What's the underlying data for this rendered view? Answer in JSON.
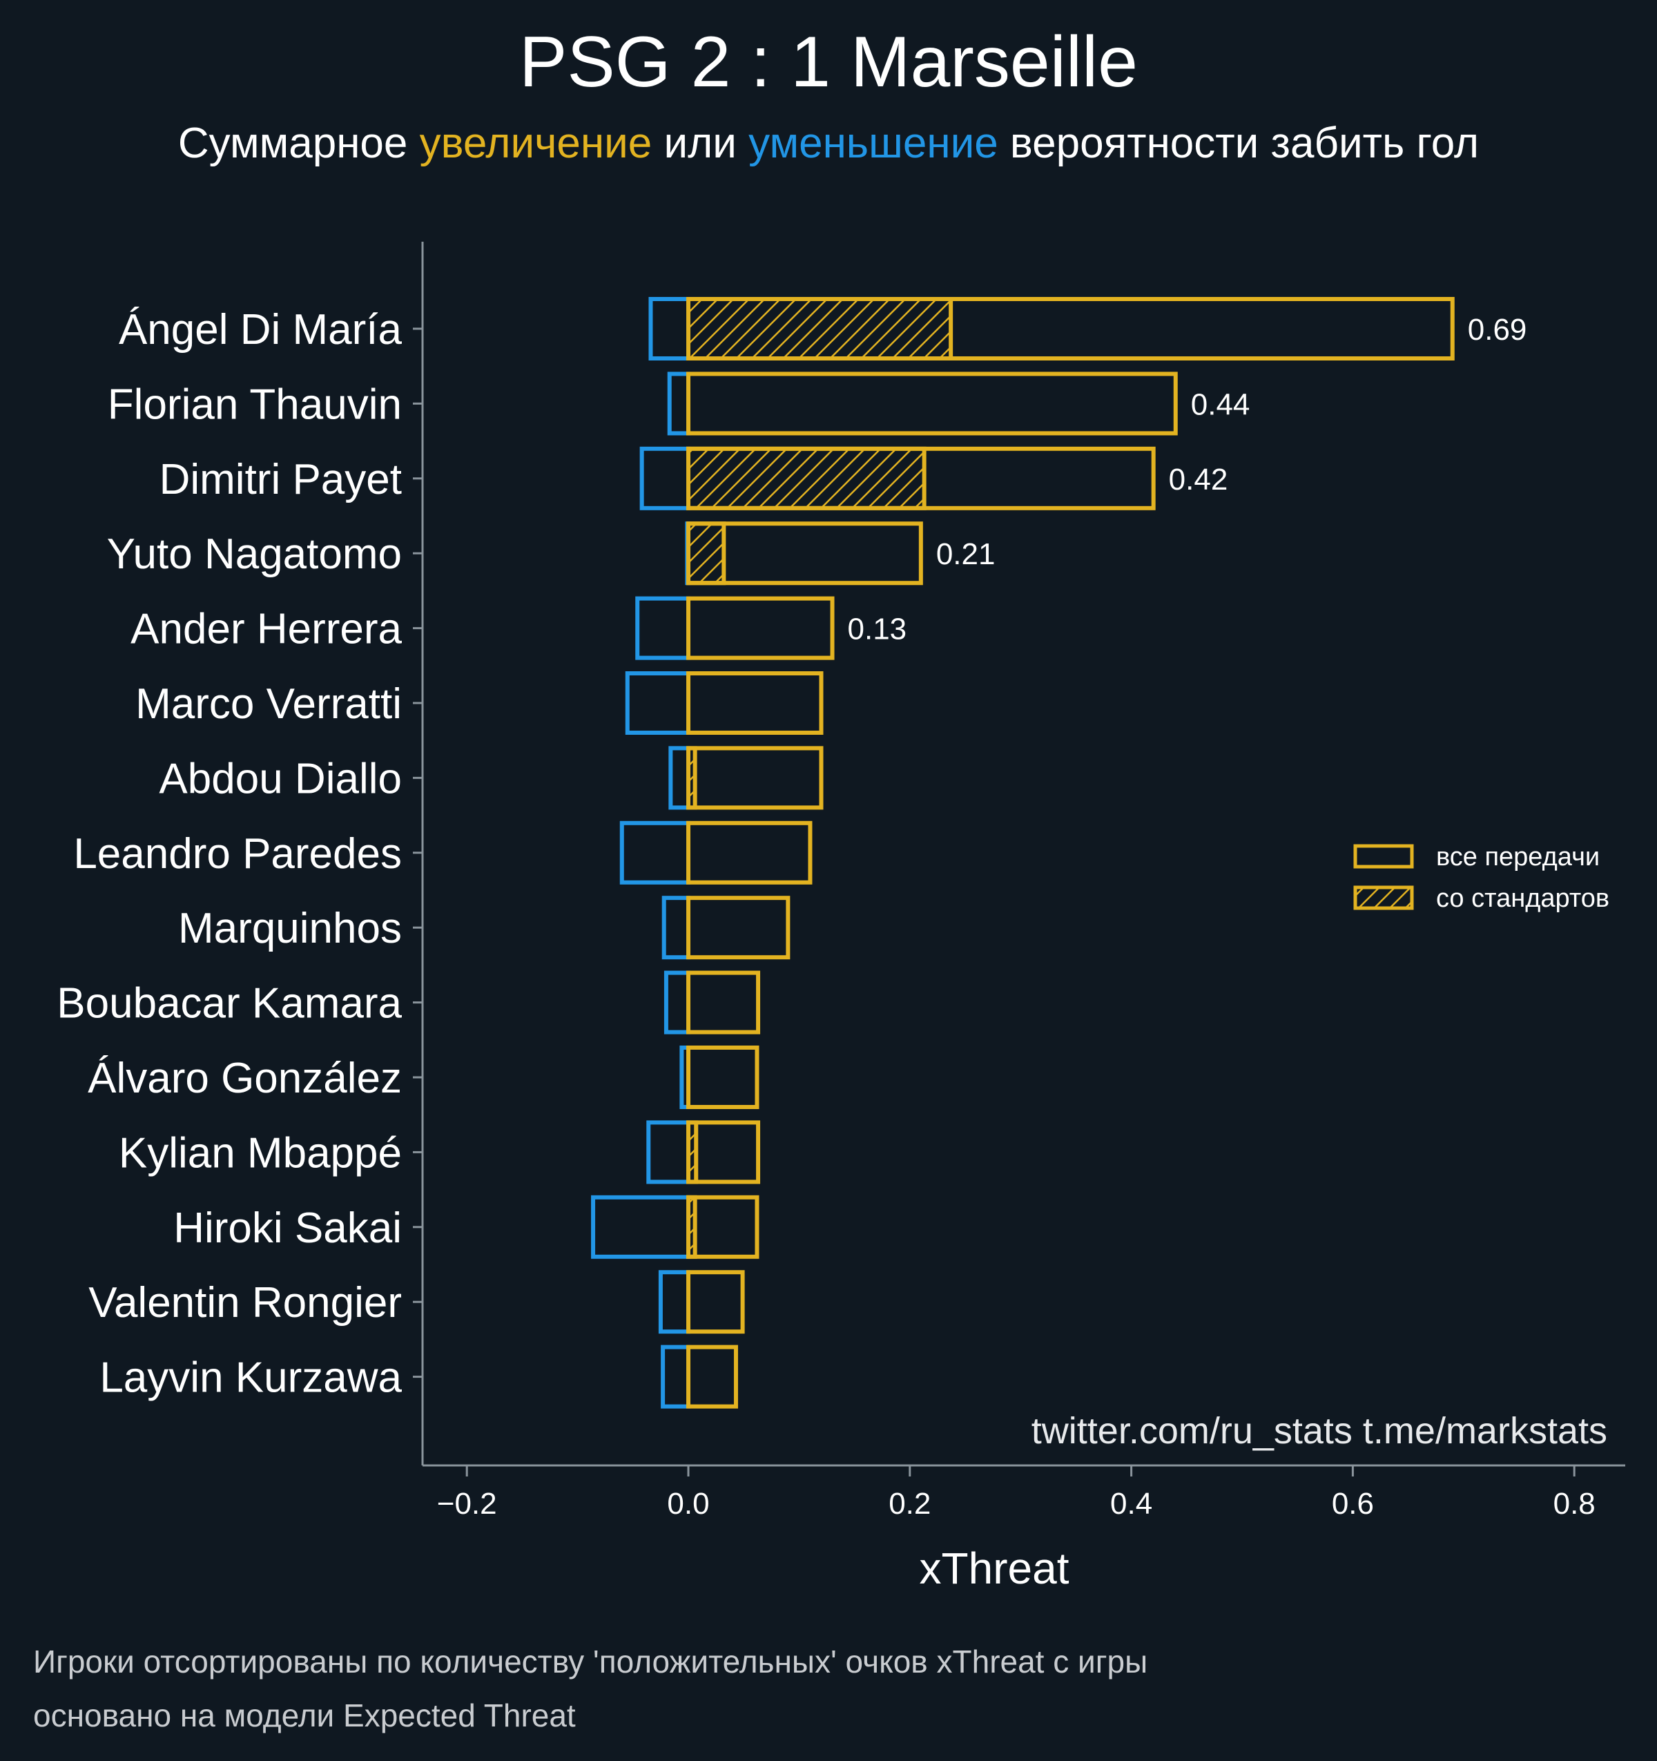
{
  "title": "PSG 2 : 1 Marseille",
  "subtitle": {
    "part1": "Суммарное ",
    "increase": "увеличение",
    "part2": " или ",
    "decrease": "уменьшение",
    "part3": " вероятности забить гол"
  },
  "colors": {
    "background": "#0f1821",
    "positive": "#e3b321",
    "negative": "#2296e6",
    "axis": "#8a949c"
  },
  "credit": "twitter.com/ru_stats  t.me/markstats",
  "footnotes": [
    "Игроки отсортированы по количеству 'положительных' очков xThreat с игры",
    "основано на модели Expected Threat"
  ],
  "chart_data": {
    "type": "bar",
    "orientation": "horizontal",
    "xlabel": "xThreat",
    "xlim": [
      -0.24,
      0.85
    ],
    "xticks": [
      -0.2,
      0.0,
      0.2,
      0.4,
      0.6,
      0.8
    ],
    "xtick_labels": [
      "−0.2",
      "0.0",
      "0.2",
      "0.4",
      "0.6",
      "0.8"
    ],
    "legend": {
      "position": "right",
      "entries": [
        "все передачи",
        "со стандартов"
      ]
    },
    "categories": [
      "Ángel Di María",
      "Florian Thauvin",
      "Dimitri Payet",
      "Yuto Nagatomo",
      "Ander Herrera",
      "Marco Verratti",
      "Abdou Diallo",
      "Leandro Paredes",
      "Marquinhos",
      "Boubacar Kamara",
      "Álvaro González",
      "Kylian Mbappé",
      "Hiroki Sakai",
      "Valentin Rongier",
      "Layvin Kurzawa"
    ],
    "series": [
      {
        "name": "все передачи (положительные)",
        "values": [
          0.69,
          0.44,
          0.42,
          0.21,
          0.13,
          0.12,
          0.12,
          0.11,
          0.09,
          0.063,
          0.062,
          0.063,
          0.062,
          0.049,
          0.043
        ]
      },
      {
        "name": "все передачи (отрицательные)",
        "values": [
          -0.034,
          -0.017,
          -0.042,
          -0.001,
          -0.046,
          -0.055,
          -0.016,
          -0.06,
          -0.022,
          -0.02,
          -0.006,
          -0.036,
          -0.086,
          -0.025,
          -0.023
        ]
      },
      {
        "name": "со стандартов",
        "values": [
          0.237,
          0.0,
          0.213,
          0.032,
          0.0,
          0.0,
          0.006,
          0.0,
          0.0,
          0.0,
          0.0,
          0.007,
          0.006,
          0.0,
          0.0
        ]
      }
    ],
    "value_labels": [
      "0.69",
      "0.44",
      "0.42",
      "0.21",
      "0.13",
      null,
      null,
      null,
      null,
      null,
      null,
      null,
      null,
      null,
      null
    ]
  }
}
